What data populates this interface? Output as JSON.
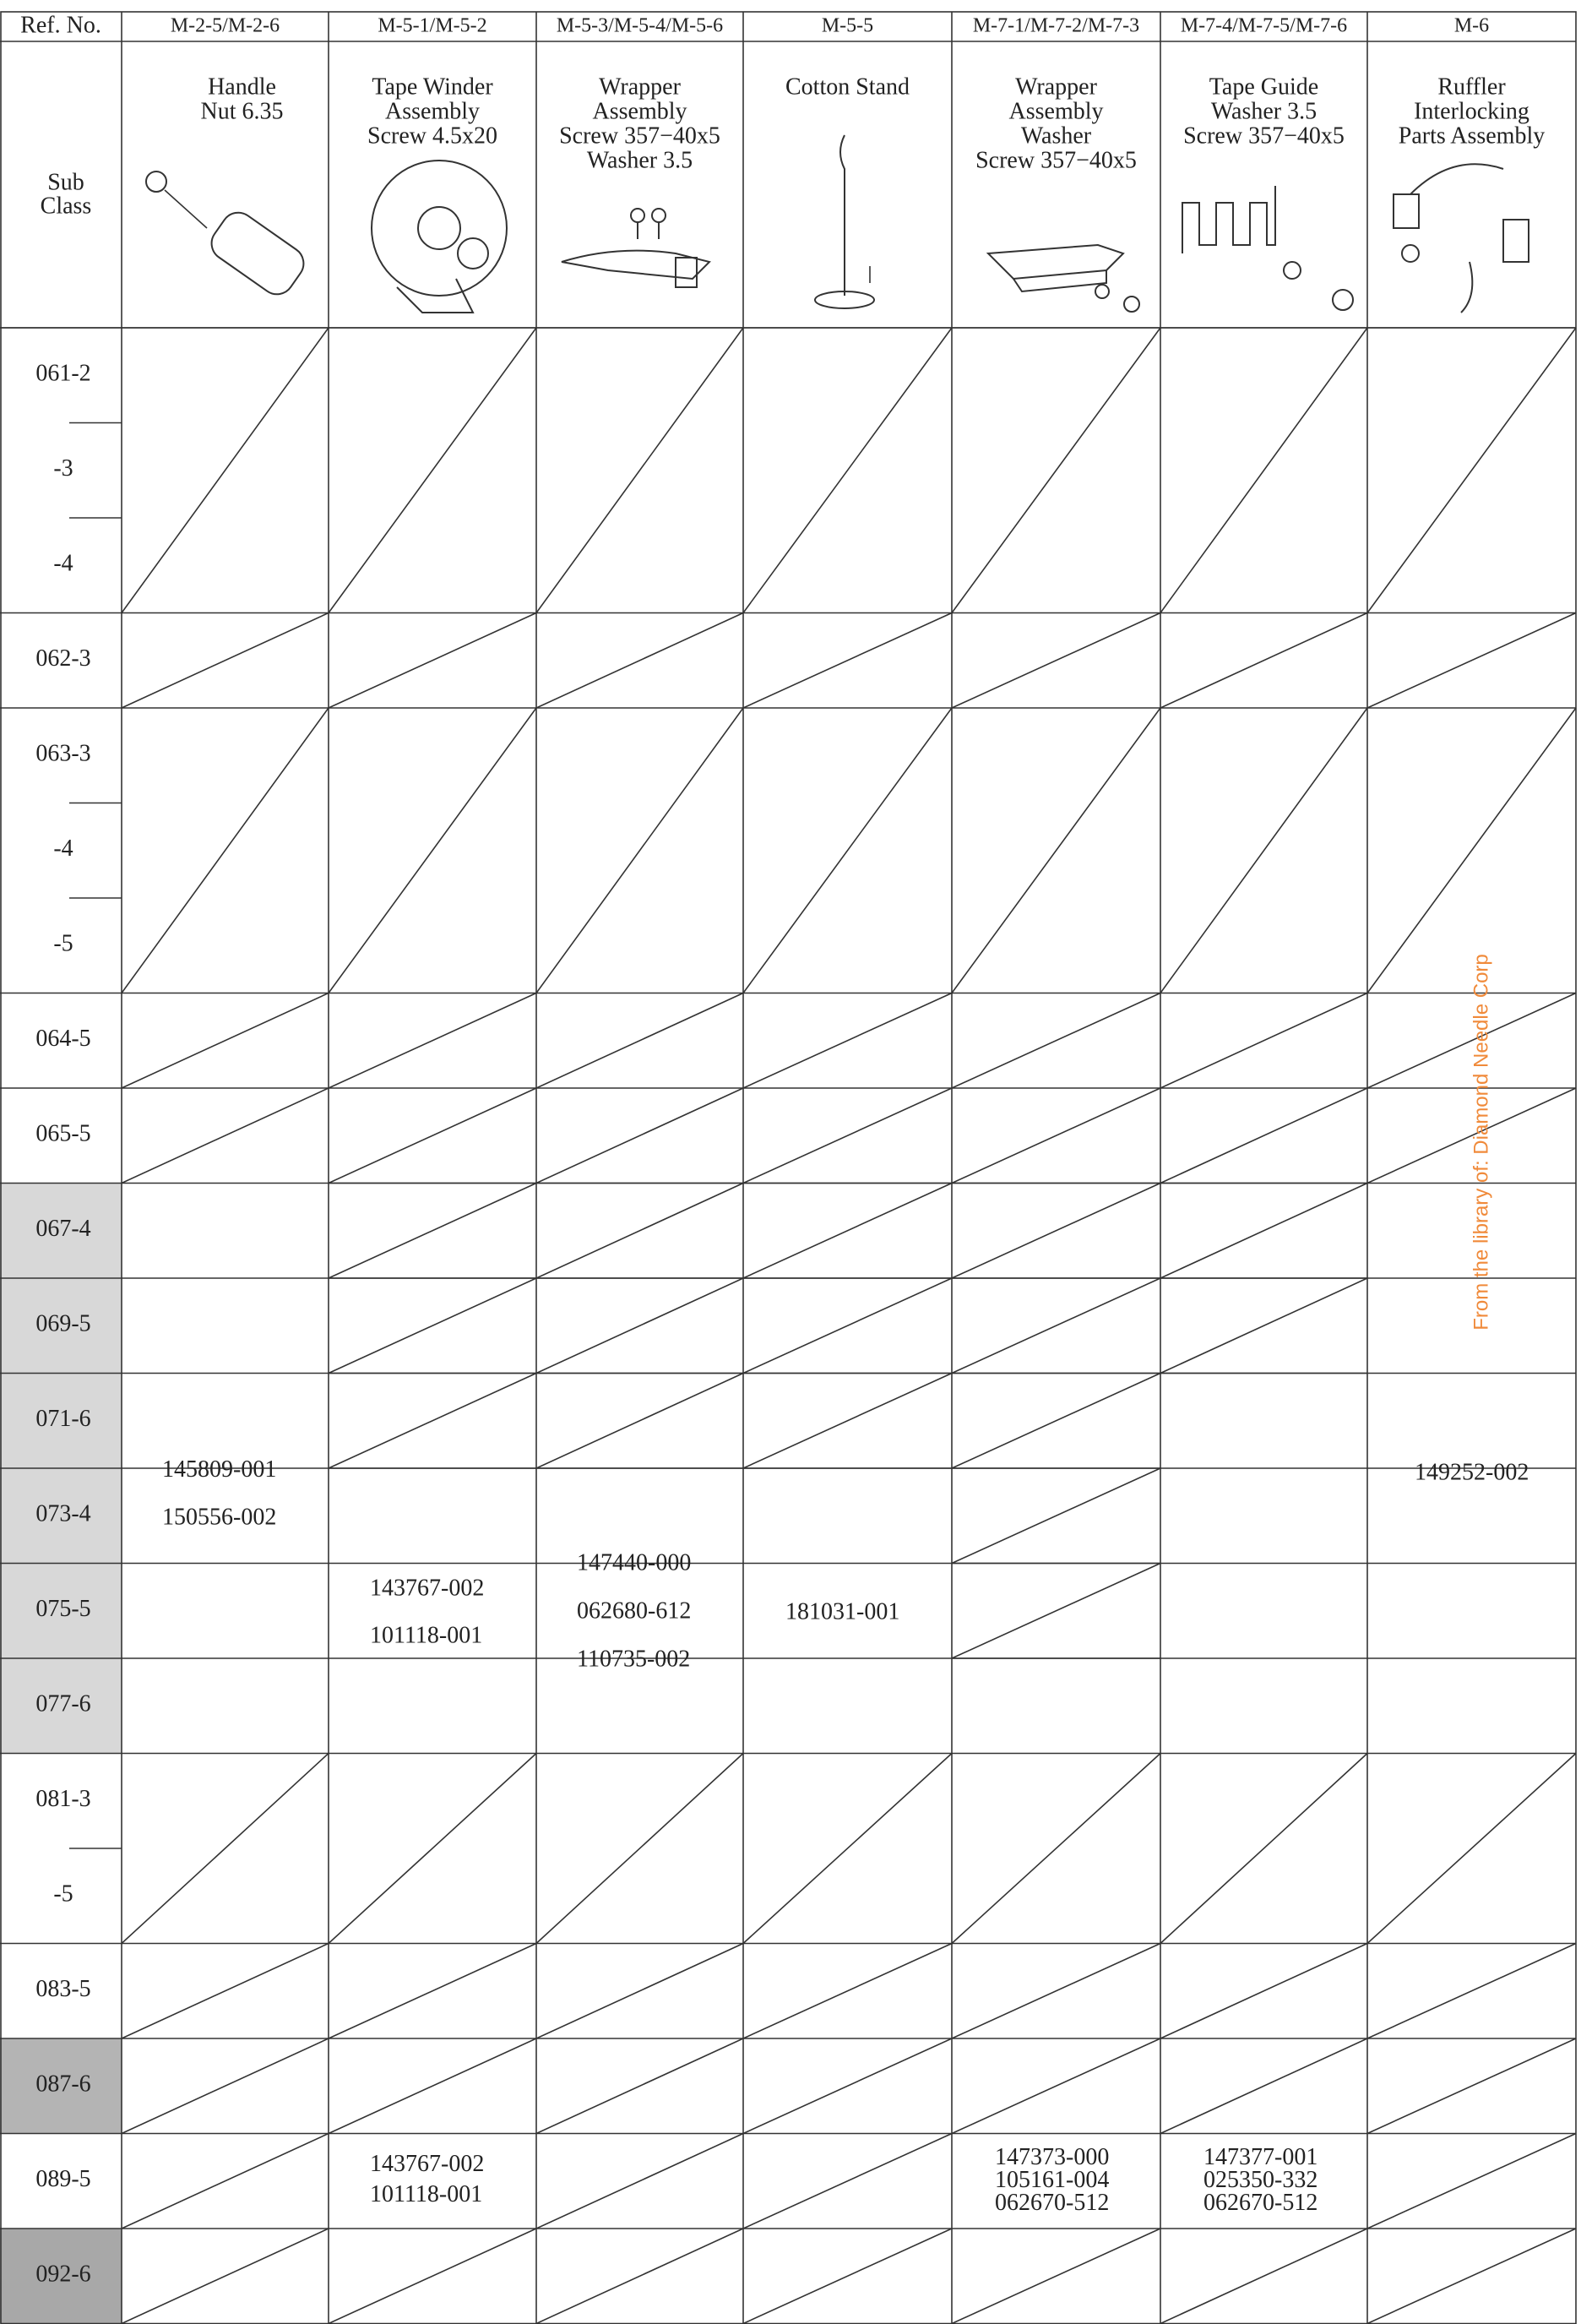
{
  "header": {
    "ref_no": "Ref. No.",
    "sub_class": [
      "Sub",
      "Class"
    ]
  },
  "columns": [
    {
      "ref": "M-2-5/M-2-6",
      "name": [
        "Handle",
        "Nut 6.35"
      ]
    },
    {
      "ref": "M-5-1/M-5-2",
      "name": [
        "Tape Winder",
        "Assembly",
        "Screw 4.5x20"
      ]
    },
    {
      "ref": "M-5-3/M-5-4/M-5-6",
      "name": [
        "Wrapper",
        "Assembly",
        "Screw 357−40x5",
        "Washer 3.5"
      ]
    },
    {
      "ref": "M-5-5",
      "name": [
        "Cotton Stand"
      ]
    },
    {
      "ref": "M-7-1/M-7-2/M-7-3",
      "name": [
        "Wrapper",
        "Assembly",
        "Washer",
        "Screw 357−40x5"
      ]
    },
    {
      "ref": "M-7-4/M-7-5/M-7-6",
      "name": [
        "Tape Guide",
        "Washer 3.5",
        "Screw 357−40x5"
      ]
    },
    {
      "ref": "M-6",
      "name": [
        "Ruffler",
        "Interlocking",
        "Parts Assembly"
      ]
    }
  ],
  "row_groups": [
    [
      "061-2",
      "-3",
      "-4"
    ],
    [
      "062-3"
    ],
    [
      "063-3",
      "-4",
      "-5"
    ],
    [
      "064-5"
    ],
    [
      "065-5"
    ],
    [
      "067-4"
    ],
    [
      "069-5"
    ],
    [
      "071-6"
    ],
    [
      "073-4"
    ],
    [
      "075-5"
    ],
    [
      "077-6"
    ],
    [
      "081-3",
      "-5"
    ],
    [
      "083-5"
    ],
    [
      "087-6"
    ],
    [
      "089-5"
    ],
    [
      "092-6"
    ]
  ],
  "block_067_077": [
    [
      "145809-001",
      "150556-002"
    ],
    [
      "143767-002",
      "101118-001"
    ],
    [
      "147440-000",
      "062680-612",
      "110735-002"
    ],
    [
      "181031-001"
    ],
    [
      "149252-002"
    ]
  ],
  "row_089_5": [
    [
      "143767-002",
      "101118-001"
    ],
    [
      "147373-000",
      "105161-004",
      "062670-512"
    ],
    [
      "147377-001",
      "025350-332",
      "062670-512"
    ]
  ],
  "watermark": "From the library of: Diamond Needle Corp"
}
